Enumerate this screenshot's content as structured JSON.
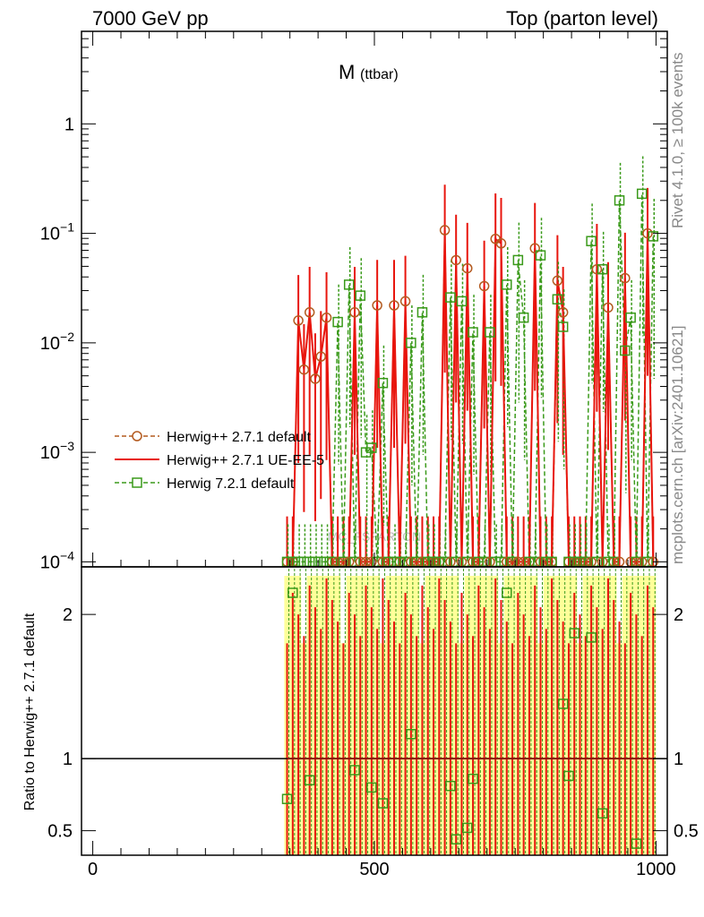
{
  "header": {
    "left": "7000 GeV pp",
    "right": "Top (parton level)"
  },
  "side": {
    "rivet": "Rivet 4.1.0, ≥ 100k events",
    "mcplots": "mcplots.cern.ch [arXiv:2401.10621]"
  },
  "watermark": "MC_FSPARTON",
  "colors": {
    "herwigpp_default": "#b35a1f",
    "herwigpp_uee5": "#e8150d",
    "herwig721": "#3a9a1a",
    "band": "#ffff99"
  },
  "chart_data": [
    {
      "type": "line",
      "title_main": "M",
      "title_sub": "(ttbar)",
      "xscale": "linear",
      "yscale": "log",
      "xlim": [
        -20,
        1020
      ],
      "ylim": [
        9e-05,
        7
      ],
      "y_ticks": [
        {
          "value": 0.0001,
          "base": "10",
          "exp": "−4"
        },
        {
          "value": 0.001,
          "base": "10",
          "exp": "−3"
        },
        {
          "value": 0.01,
          "base": "10",
          "exp": "−2"
        },
        {
          "value": 0.1,
          "base": "10",
          "exp": "−1"
        },
        {
          "value": 1,
          "base": "1",
          "exp": ""
        }
      ],
      "legend_position": "left",
      "legend": [
        {
          "label": "Herwig++ 2.7.1 default",
          "style": "dashed-circle"
        },
        {
          "label": "Herwig++ 2.7.1 UE-EE-5",
          "style": "solid"
        },
        {
          "label": "Herwig 7.2.1 default",
          "style": "dashed-square"
        }
      ],
      "x": [
        345,
        355,
        365,
        375,
        385,
        395,
        405,
        415,
        425,
        435,
        445,
        455,
        465,
        475,
        485,
        495,
        505,
        515,
        525,
        535,
        545,
        555,
        565,
        575,
        585,
        595,
        605,
        615,
        625,
        635,
        645,
        655,
        665,
        675,
        685,
        695,
        705,
        715,
        725,
        735,
        745,
        755,
        765,
        775,
        785,
        795,
        805,
        815,
        825,
        835,
        845,
        855,
        865,
        875,
        885,
        895,
        905,
        915,
        925,
        935,
        945,
        955,
        965,
        975,
        985,
        995
      ],
      "series": [
        {
          "name": "Herwig++ 2.7.1 default",
          "values": [
            0.0001,
            0.0001,
            0.016,
            0.0057,
            0.019,
            0.0047,
            0.0075,
            0.017,
            0.0001,
            0.0001,
            0.0001,
            0.0001,
            0.019,
            0.0001,
            0.0001,
            0.0001,
            0.022,
            0.0001,
            0.0001,
            0.022,
            0.0001,
            0.024,
            0.0001,
            0.0001,
            0.0001,
            0.0001,
            0.0001,
            0.0001,
            0.107,
            0.0001,
            0.057,
            0.0001,
            0.048,
            0.0001,
            0.0001,
            0.033,
            0.0001,
            0.089,
            0.081,
            0.0001,
            0.0001,
            0.0001,
            0.0001,
            0.0001,
            0.073,
            0.0001,
            0.0001,
            0.0001,
            0.037,
            0.019,
            0.0001,
            0.0001,
            0.0001,
            0.0001,
            0.0001,
            0.047,
            0.0001,
            0.021,
            0.0001,
            0.0001,
            0.039,
            0.0001,
            0.0001,
            0.0001,
            0.1,
            0.0001
          ]
        },
        {
          "name": "Herwig++ 2.7.1 UE-EE-5",
          "values": [
            0.0001,
            0.0001,
            0.016,
            0.0057,
            0.019,
            0.0047,
            0.0075,
            0.017,
            0.0001,
            0.0001,
            0.0001,
            0.0001,
            0.019,
            0.0001,
            0.0001,
            0.0001,
            0.022,
            0.0001,
            0.0001,
            0.022,
            0.0001,
            0.024,
            0.0001,
            0.0001,
            0.0001,
            0.0001,
            0.0001,
            0.0001,
            0.107,
            0.0001,
            0.057,
            0.0001,
            0.048,
            0.0001,
            0.0001,
            0.033,
            0.0001,
            0.089,
            0.081,
            0.0001,
            0.0001,
            0.0001,
            0.0001,
            0.0001,
            0.073,
            0.0001,
            0.0001,
            0.0001,
            0.037,
            0.019,
            0.0001,
            0.0001,
            0.0001,
            0.0001,
            0.0001,
            0.047,
            0.0001,
            0.021,
            0.0001,
            0.0001,
            0.039,
            0.0001,
            0.0001,
            0.0001,
            0.1,
            0.0001
          ]
        },
        {
          "name": "Herwig 7.2.1 default",
          "values": [
            0.0001,
            0.0001,
            0.0001,
            0.0001,
            0.0001,
            0.0001,
            0.0001,
            0.0001,
            0.0001,
            0.0155,
            0.0001,
            0.034,
            0.0001,
            0.027,
            0.001,
            0.0011,
            0.0001,
            0.0043,
            0.0001,
            0.0001,
            0.0001,
            0.0001,
            0.01,
            0.0001,
            0.019,
            0.0001,
            0.0001,
            0.0001,
            0.0001,
            0.026,
            0.0001,
            0.024,
            0.0001,
            0.0125,
            0.0001,
            0.0001,
            0.0125,
            0.0001,
            0.0001,
            0.034,
            0.0001,
            0.057,
            0.017,
            0.0001,
            0.0001,
            0.063,
            0.0001,
            0.0001,
            0.025,
            0.014,
            0.0001,
            0.0001,
            0.0001,
            0.0001,
            0.085,
            0.0001,
            0.047,
            0.0001,
            0.0001,
            0.2,
            0.0085,
            0.017,
            0.0001,
            0.23,
            0.0001,
            0.094
          ]
        }
      ]
    },
    {
      "type": "line",
      "ylabel": "Ratio to Herwig++ 2.7.1 default",
      "xscale": "linear",
      "yscale": "linear",
      "xlim": [
        -20,
        1020
      ],
      "ylim": [
        0.33,
        2.33
      ],
      "x_ticks": [
        0,
        500,
        1000
      ],
      "y_ticks": [
        0.5,
        1,
        2
      ],
      "reference_line": 1,
      "x": [
        345,
        355,
        365,
        375,
        385,
        395,
        405,
        415,
        425,
        435,
        445,
        455,
        465,
        475,
        485,
        495,
        505,
        515,
        525,
        535,
        545,
        555,
        565,
        575,
        585,
        595,
        605,
        615,
        625,
        635,
        645,
        655,
        665,
        675,
        685,
        695,
        705,
        715,
        725,
        735,
        745,
        755,
        765,
        775,
        785,
        795,
        805,
        815,
        825,
        835,
        845,
        855,
        865,
        875,
        885,
        895,
        905,
        915,
        925,
        935,
        945,
        955,
        965,
        975,
        985,
        995
      ],
      "series": [
        {
          "name": "Herwig 7.2.1 default / Herwig++ 2.7.1 default",
          "points": [
            {
              "x": 345,
              "y": 0.72
            },
            {
              "x": 355,
              "y": 2.15
            },
            {
              "x": 385,
              "y": 0.85
            },
            {
              "x": 465,
              "y": 0.92
            },
            {
              "x": 495,
              "y": 0.8
            },
            {
              "x": 515,
              "y": 0.69
            },
            {
              "x": 565,
              "y": 1.17
            },
            {
              "x": 635,
              "y": 0.81
            },
            {
              "x": 645,
              "y": 0.44
            },
            {
              "x": 665,
              "y": 0.52
            },
            {
              "x": 675,
              "y": 0.86
            },
            {
              "x": 735,
              "y": 2.15
            },
            {
              "x": 855,
              "y": 1.87
            },
            {
              "x": 835,
              "y": 1.38
            },
            {
              "x": 845,
              "y": 0.88
            },
            {
              "x": 885,
              "y": 1.84
            },
            {
              "x": 905,
              "y": 0.62
            },
            {
              "x": 965,
              "y": 0.41
            }
          ]
        }
      ]
    }
  ],
  "watermark_label": "MC_FSPARTON"
}
